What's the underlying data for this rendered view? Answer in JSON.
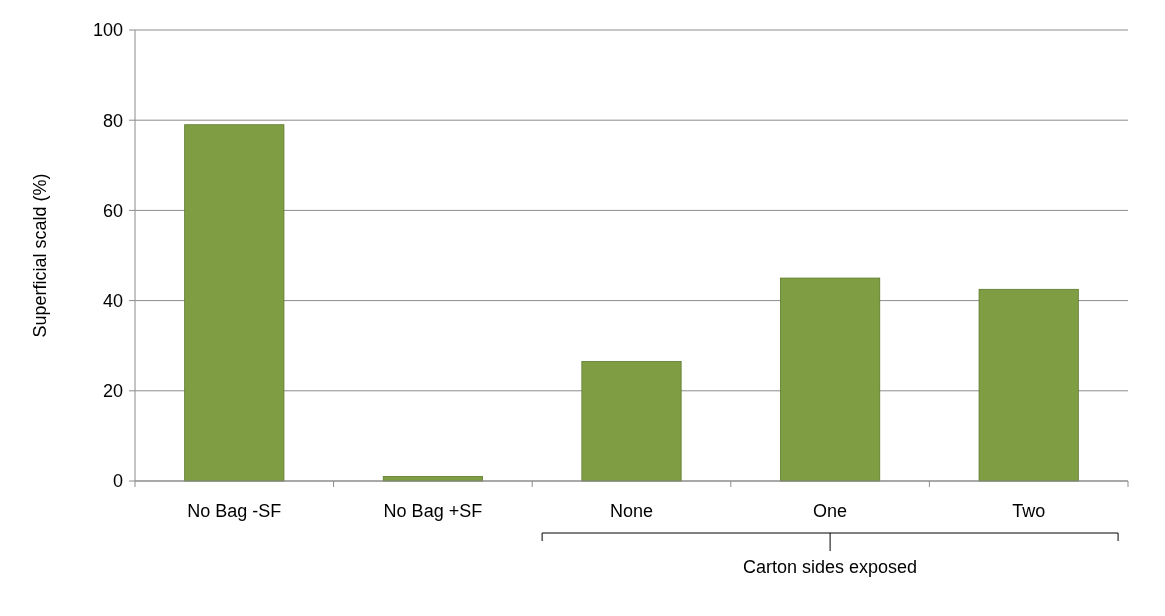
{
  "chart_data": {
    "type": "bar",
    "ylabel": "Superficial scald (%)",
    "categories": [
      "No Bag -SF",
      "No Bag +SF",
      "None",
      "One",
      "Two"
    ],
    "values": [
      79,
      1,
      26.5,
      45,
      42.5
    ],
    "color": "#7f9e44",
    "ylim": [
      0,
      100
    ],
    "yticks": [
      0,
      20,
      40,
      60,
      80,
      100
    ],
    "grid": "y",
    "annotations": [
      {
        "text": "Carton sides exposed",
        "x": "One"
      }
    ]
  }
}
